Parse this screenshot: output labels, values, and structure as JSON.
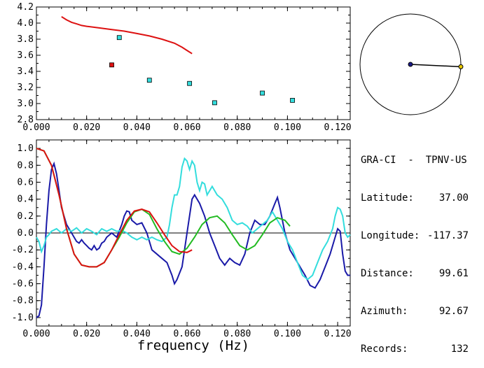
{
  "chart_data": [
    {
      "type": "scatter",
      "xlim": [
        0.0,
        0.125
      ],
      "ylim": [
        2.8,
        4.2
      ],
      "yticks": [
        "2.8",
        "3.0",
        "3.2",
        "3.4",
        "3.6",
        "3.8",
        "4.0",
        "4.2"
      ],
      "xticks": [
        "0.000",
        "0.020",
        "0.040",
        "0.060",
        "0.080",
        "0.100",
        "0.120"
      ],
      "xlabel": "",
      "ylabel": "",
      "curve": {
        "color": "#dd1111",
        "x": [
          0.01,
          0.012,
          0.014,
          0.016,
          0.018,
          0.02,
          0.025,
          0.03,
          0.035,
          0.04,
          0.045,
          0.05,
          0.055,
          0.058,
          0.06,
          0.062
        ],
        "y": [
          4.08,
          4.04,
          4.01,
          3.99,
          3.97,
          3.96,
          3.94,
          3.92,
          3.9,
          3.87,
          3.84,
          3.8,
          3.75,
          3.7,
          3.66,
          3.62
        ]
      },
      "points_red": {
        "color": "#dd1111",
        "x": [
          0.03
        ],
        "y": [
          3.48
        ]
      },
      "points_cyan": {
        "color": "#33dddd",
        "x": [
          0.033,
          0.045,
          0.061,
          0.071,
          0.09,
          0.102
        ],
        "y": [
          3.82,
          3.29,
          3.25,
          3.01,
          3.13,
          3.04
        ]
      }
    },
    {
      "type": "line",
      "xlim": [
        0.0,
        0.125
      ],
      "ylim": [
        -1.1,
        1.1
      ],
      "yticks": [
        "-1.0",
        "-0.8",
        "-0.6",
        "-0.4",
        "-0.2",
        "0.0",
        "0.2",
        "0.4",
        "0.6",
        "0.8",
        "1.0"
      ],
      "xticks": [
        "0.000",
        "0.020",
        "0.040",
        "0.060",
        "0.080",
        "0.100",
        "0.120"
      ],
      "xlabel": "frequency (Hz)",
      "ylabel": "",
      "series": [
        {
          "color": "#1a1aa8",
          "x": [
            0.0,
            0.001,
            0.002,
            0.003,
            0.004,
            0.005,
            0.006,
            0.007,
            0.008,
            0.009,
            0.01,
            0.012,
            0.014,
            0.016,
            0.017,
            0.018,
            0.019,
            0.02,
            0.021,
            0.022,
            0.023,
            0.024,
            0.025,
            0.026,
            0.027,
            0.028,
            0.03,
            0.032,
            0.034,
            0.035,
            0.036,
            0.037,
            0.038,
            0.04,
            0.042,
            0.044,
            0.046,
            0.048,
            0.05,
            0.052,
            0.054,
            0.055,
            0.056,
            0.058,
            0.06,
            0.062,
            0.063,
            0.065,
            0.067,
            0.069,
            0.071,
            0.073,
            0.075,
            0.077,
            0.079,
            0.081,
            0.083,
            0.085,
            0.087,
            0.089,
            0.091,
            0.093,
            0.095,
            0.096,
            0.097,
            0.099,
            0.101,
            0.103,
            0.105,
            0.107,
            0.109,
            0.111,
            0.113,
            0.115,
            0.117,
            0.119,
            0.12,
            0.121,
            0.122,
            0.123,
            0.124,
            0.125
          ],
          "y": [
            -1.0,
            -0.98,
            -0.85,
            -0.4,
            0.1,
            0.5,
            0.75,
            0.82,
            0.7,
            0.5,
            0.3,
            0.1,
            0.0,
            -0.1,
            -0.12,
            -0.08,
            -0.12,
            -0.15,
            -0.18,
            -0.2,
            -0.15,
            -0.2,
            -0.18,
            -0.12,
            -0.1,
            -0.05,
            0.0,
            -0.05,
            0.1,
            0.2,
            0.26,
            0.25,
            0.15,
            0.1,
            0.12,
            0.0,
            -0.2,
            -0.25,
            -0.3,
            -0.35,
            -0.5,
            -0.6,
            -0.55,
            -0.4,
            0.0,
            0.4,
            0.45,
            0.35,
            0.2,
            0.0,
            -0.15,
            -0.3,
            -0.38,
            -0.3,
            -0.35,
            -0.38,
            -0.25,
            0.0,
            0.15,
            0.1,
            0.1,
            0.2,
            0.35,
            0.42,
            0.3,
            0.0,
            -0.2,
            -0.3,
            -0.4,
            -0.5,
            -0.62,
            -0.65,
            -0.55,
            -0.4,
            -0.25,
            -0.05,
            0.05,
            0.02,
            -0.25,
            -0.45,
            -0.5,
            -0.5
          ]
        },
        {
          "color": "#33dddd",
          "x": [
            0.0,
            0.001,
            0.002,
            0.003,
            0.004,
            0.005,
            0.006,
            0.008,
            0.01,
            0.012,
            0.014,
            0.016,
            0.018,
            0.02,
            0.022,
            0.024,
            0.026,
            0.028,
            0.03,
            0.032,
            0.034,
            0.036,
            0.038,
            0.04,
            0.042,
            0.044,
            0.046,
            0.048,
            0.05,
            0.052,
            0.053,
            0.054,
            0.055,
            0.056,
            0.057,
            0.058,
            0.059,
            0.06,
            0.061,
            0.062,
            0.063,
            0.064,
            0.065,
            0.066,
            0.067,
            0.068,
            0.07,
            0.072,
            0.074,
            0.076,
            0.078,
            0.08,
            0.082,
            0.084,
            0.086,
            0.088,
            0.09,
            0.092,
            0.094,
            0.096,
            0.098,
            0.1,
            0.102,
            0.104,
            0.106,
            0.108,
            0.11,
            0.112,
            0.114,
            0.116,
            0.118,
            0.119,
            0.12,
            0.121,
            0.122,
            0.123,
            0.124,
            0.125
          ],
          "y": [
            -0.05,
            -0.1,
            -0.22,
            -0.15,
            -0.05,
            -0.02,
            0.02,
            0.05,
            0.0,
            0.05,
            0.02,
            0.06,
            0.0,
            0.05,
            0.02,
            -0.02,
            0.05,
            0.02,
            0.05,
            0.02,
            0.03,
            0.0,
            -0.05,
            -0.08,
            -0.05,
            -0.08,
            -0.05,
            -0.08,
            -0.1,
            -0.05,
            0.1,
            0.3,
            0.45,
            0.45,
            0.55,
            0.78,
            0.88,
            0.85,
            0.75,
            0.85,
            0.8,
            0.6,
            0.5,
            0.6,
            0.58,
            0.45,
            0.55,
            0.45,
            0.4,
            0.3,
            0.15,
            0.1,
            0.12,
            0.08,
            0.0,
            0.05,
            0.1,
            0.15,
            0.25,
            0.15,
            0.05,
            -0.1,
            -0.2,
            -0.35,
            -0.5,
            -0.55,
            -0.5,
            -0.35,
            -0.2,
            -0.1,
            0.05,
            0.2,
            0.3,
            0.28,
            0.2,
            0.0,
            -0.05,
            -0.02
          ]
        },
        {
          "color": "#22bb22",
          "x": [
            0.0,
            0.003,
            0.006,
            0.009,
            0.012,
            0.015,
            0.018,
            0.021,
            0.024,
            0.027,
            0.03,
            0.033,
            0.036,
            0.039,
            0.042,
            0.045,
            0.048,
            0.051,
            0.054,
            0.057,
            0.06,
            0.063,
            0.066,
            0.069,
            0.072,
            0.075,
            0.078,
            0.081,
            0.084,
            0.087,
            0.09,
            0.093,
            0.096,
            0.099,
            0.101
          ],
          "y": [
            1.0,
            0.97,
            0.8,
            0.45,
            0.05,
            -0.25,
            -0.38,
            -0.4,
            -0.4,
            -0.35,
            -0.2,
            -0.05,
            0.12,
            0.25,
            0.28,
            0.22,
            0.05,
            -0.1,
            -0.22,
            -0.25,
            -0.18,
            -0.05,
            0.1,
            0.18,
            0.2,
            0.12,
            -0.02,
            -0.15,
            -0.2,
            -0.15,
            -0.02,
            0.12,
            0.18,
            0.15,
            0.08
          ]
        },
        {
          "color": "#dd1111",
          "x": [
            0.0,
            0.003,
            0.006,
            0.009,
            0.012,
            0.015,
            0.018,
            0.021,
            0.024,
            0.027,
            0.03,
            0.033,
            0.036,
            0.039,
            0.042,
            0.045,
            0.048,
            0.051,
            0.054,
            0.057,
            0.06,
            0.062
          ],
          "y": [
            1.0,
            0.97,
            0.8,
            0.45,
            0.05,
            -0.25,
            -0.38,
            -0.4,
            -0.4,
            -0.35,
            -0.2,
            -0.02,
            0.15,
            0.26,
            0.28,
            0.25,
            0.12,
            -0.02,
            -0.15,
            -0.22,
            -0.23,
            -0.2
          ]
        }
      ],
      "hline_zero": true
    }
  ],
  "azimuth_plot": {
    "azimuth_deg": 92.67
  },
  "info": {
    "title": "GRA-CI  -  TPNV-US",
    "rows": [
      {
        "label": "Latitude:",
        "value": "37.00"
      },
      {
        "label": "Longitude:",
        "value": "-117.37"
      },
      {
        "label": "Distance:",
        "value": "99.61"
      },
      {
        "label": "Azimuth:",
        "value": "92.67"
      },
      {
        "label": "Records:",
        "value": "132"
      }
    ]
  }
}
